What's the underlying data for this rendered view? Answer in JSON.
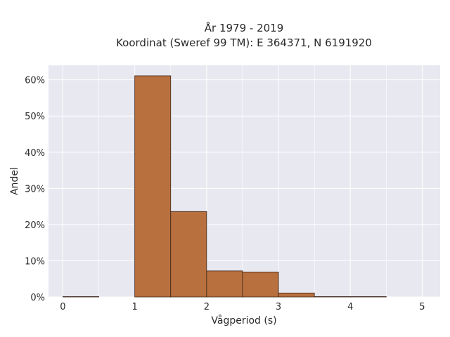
{
  "chart_data": {
    "type": "bar",
    "title_lines": [
      "År 1979 - 2019",
      "Koordinat (Sweref 99 TM): E 364371, N 6191920"
    ],
    "xlabel": "Vågperiod (s)",
    "ylabel": "Andel",
    "xlim": [
      -0.2,
      5.25
    ],
    "ylim": [
      0,
      64
    ],
    "x_ticks": [
      0,
      1,
      2,
      3,
      4,
      5
    ],
    "x_tick_labels": [
      "0",
      "1",
      "2",
      "3",
      "4",
      "5"
    ],
    "y_ticks": [
      0,
      10,
      20,
      30,
      40,
      50,
      60
    ],
    "y_tick_labels": [
      "0%",
      "10%",
      "20%",
      "30%",
      "40%",
      "50%",
      "60%"
    ],
    "bin_width": 0.5,
    "bins": [
      {
        "x0": 0.0,
        "x1": 0.5,
        "value": 0.1
      },
      {
        "x0": 0.5,
        "x1": 1.0,
        "value": 0.0
      },
      {
        "x0": 1.0,
        "x1": 1.5,
        "value": 61.1
      },
      {
        "x0": 1.5,
        "x1": 2.0,
        "value": 23.6
      },
      {
        "x0": 2.0,
        "x1": 2.5,
        "value": 7.2
      },
      {
        "x0": 2.5,
        "x1": 3.0,
        "value": 6.9
      },
      {
        "x0": 3.0,
        "x1": 3.5,
        "value": 1.1
      },
      {
        "x0": 3.5,
        "x1": 4.0,
        "value": 0.1
      },
      {
        "x0": 4.0,
        "x1": 4.5,
        "value": 0.1
      },
      {
        "x0": 4.5,
        "x1": 5.0,
        "value": 0.0
      }
    ],
    "grid": true,
    "colors": {
      "background": "#e8e8f0",
      "bar_fill": "#b8703f",
      "bar_edge": "#3a2418",
      "grid": "#ffffff"
    }
  }
}
